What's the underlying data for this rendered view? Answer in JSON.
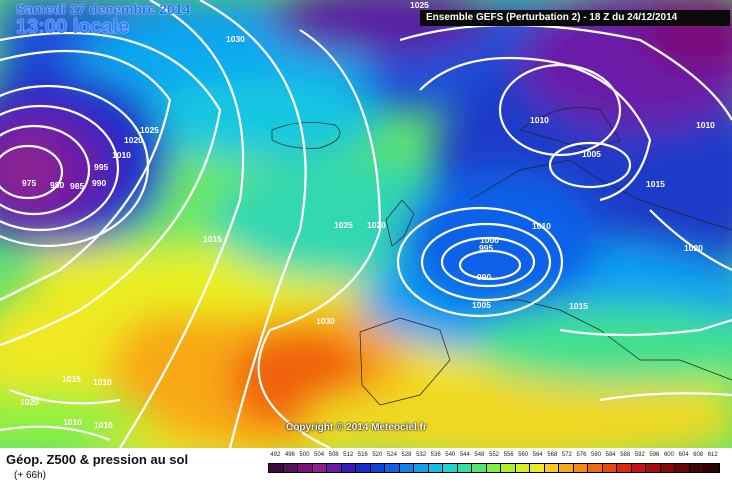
{
  "header": {
    "date": "Samedi 27 decembre 2014",
    "time": "13:00 locale",
    "model": "Ensemble GEFS  (Perturbation 2)  -  18 Z du 24/12/2014",
    "copyright": "Copyright © 2014 Meteociel.fr"
  },
  "footer": {
    "product": "Géop. Z500 & pression au sol",
    "lead_time": "(+ 66h)"
  },
  "isobar_labels": [
    "975",
    "980",
    "985",
    "990",
    "995",
    "1010",
    "1020",
    "1025",
    "1030",
    "1015",
    "1025",
    "1020",
    "1030",
    "1015",
    "1010",
    "1020",
    "1010",
    "1010",
    "1005",
    "1010",
    "1015",
    "1020",
    "1000",
    "995",
    "990",
    "1005",
    "1015",
    "1010",
    "1025",
    "1010"
  ],
  "scale": {
    "values": [
      "492",
      "496",
      "500",
      "504",
      "508",
      "512",
      "516",
      "520",
      "524",
      "528",
      "532",
      "536",
      "540",
      "544",
      "548",
      "552",
      "556",
      "560",
      "564",
      "568",
      "572",
      "576",
      "580",
      "584",
      "588",
      "592",
      "596",
      "600",
      "604",
      "608",
      "612"
    ],
    "colors": [
      "#3a0a3a",
      "#5a0f5a",
      "#7a107a",
      "#8c2090",
      "#6a1aa8",
      "#3a1ab8",
      "#1a2ac8",
      "#1040d8",
      "#1060e8",
      "#1080f0",
      "#10a0f0",
      "#10c0e8",
      "#18d8d0",
      "#30e0a0",
      "#50e870",
      "#80f040",
      "#b0f020",
      "#d8f020",
      "#f0e820",
      "#f8c820",
      "#f8a818",
      "#f88810",
      "#f06810",
      "#e84810",
      "#e02810",
      "#c81010",
      "#a80a10",
      "#880808",
      "#680606",
      "#480404",
      "#300303"
    ]
  }
}
